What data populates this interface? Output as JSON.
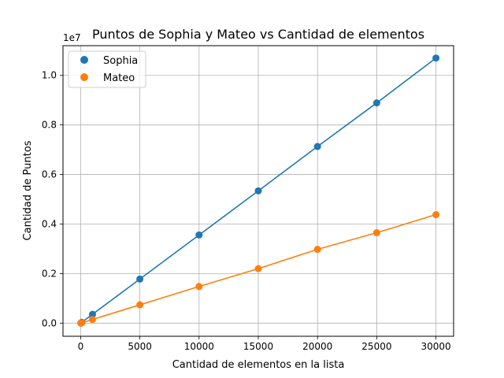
{
  "chart_data": {
    "type": "line",
    "title": "Puntos de Sophia y Mateo vs Cantidad de elementos",
    "xlabel": "Cantidad de elementos en la lista",
    "ylabel": "Cantidad de Puntos",
    "y_offset_label": "1e7",
    "xlim": [
      -1490,
      31490
    ],
    "ylim": [
      -530000,
      11200000
    ],
    "x_ticks": [
      0,
      5000,
      10000,
      15000,
      20000,
      25000,
      30000
    ],
    "x_tick_labels": [
      "0",
      "5000",
      "10000",
      "15000",
      "20000",
      "25000",
      "30000"
    ],
    "y_ticks": [
      0,
      2000000,
      4000000,
      6000000,
      8000000,
      10000000
    ],
    "y_tick_labels": [
      "0.0",
      "0.2",
      "0.4",
      "0.6",
      "0.8",
      "1.0"
    ],
    "grid": true,
    "legend_position": "top-left",
    "x": [
      10,
      100,
      1000,
      5000,
      10000,
      15000,
      20000,
      25000,
      30000
    ],
    "series": [
      {
        "name": "Sophia",
        "color": "#1f77b4",
        "values": [
          2000,
          35000,
          355000,
          1780000,
          3560000,
          5340000,
          7130000,
          8890000,
          10700000
        ]
      },
      {
        "name": "Mateo",
        "color": "#ff7f0e",
        "values": [
          1000,
          15000,
          146000,
          740000,
          1480000,
          2200000,
          2980000,
          3650000,
          4380000
        ]
      }
    ]
  }
}
